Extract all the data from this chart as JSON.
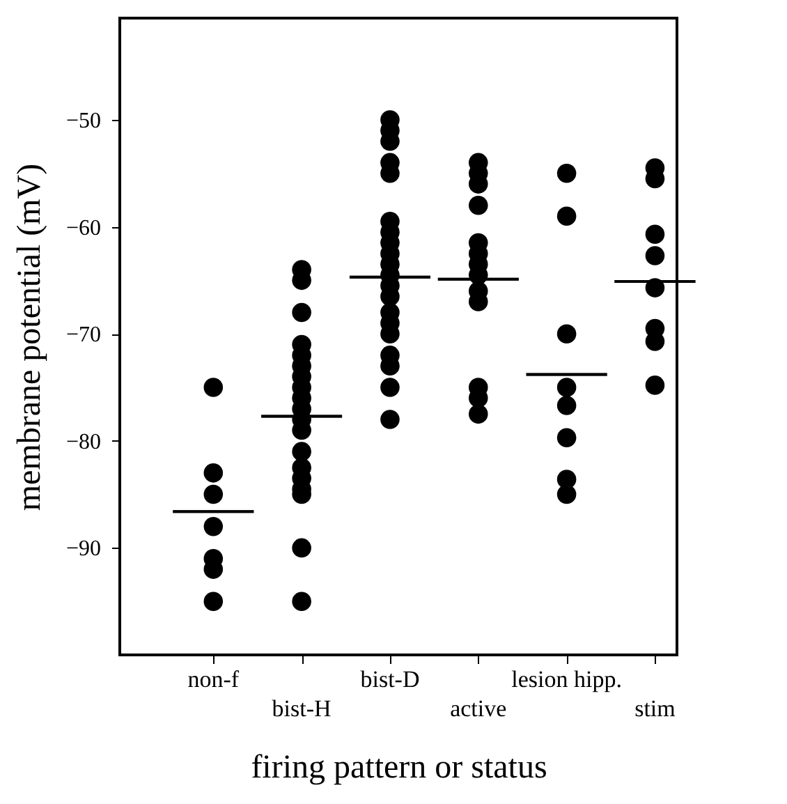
{
  "chart_data": {
    "type": "scatter",
    "xlabel": "firing pattern or status",
    "ylabel": "membrane potential (mV)",
    "categories": [
      "non-f",
      "bist-H",
      "bist-D",
      "active",
      "lesion hipp.",
      "stim"
    ],
    "ylim": [
      -100,
      -40.5
    ],
    "yticks": [
      -50,
      -60,
      -70,
      -80,
      -90
    ],
    "grid": false,
    "marker": "circle",
    "series": [
      {
        "color": "#000000",
        "x": [
          "non-f",
          "non-f",
          "non-f",
          "non-f",
          "non-f",
          "non-f",
          "non-f",
          "bist-H",
          "bist-H",
          "bist-H",
          "bist-H",
          "bist-H",
          "bist-H",
          "bist-H",
          "bist-H",
          "bist-H",
          "bist-H",
          "bist-H",
          "bist-H",
          "bist-H",
          "bist-H",
          "bist-H",
          "bist-H",
          "bist-H",
          "bist-H",
          "bist-H",
          "bist-D",
          "bist-D",
          "bist-D",
          "bist-D",
          "bist-D",
          "bist-D",
          "bist-D",
          "bist-D",
          "bist-D",
          "bist-D",
          "bist-D",
          "bist-D",
          "bist-D",
          "bist-D",
          "bist-D",
          "bist-D",
          "bist-D",
          "bist-D",
          "bist-D",
          "bist-D",
          "active",
          "active",
          "active",
          "active",
          "active",
          "active",
          "active",
          "active",
          "active",
          "active",
          "active",
          "active",
          "active",
          "lesion hipp.",
          "lesion hipp.",
          "lesion hipp.",
          "lesion hipp.",
          "lesion hipp.",
          "lesion hipp.",
          "lesion hipp.",
          "lesion hipp.",
          "stim",
          "stim",
          "stim",
          "stim",
          "stim",
          "stim",
          "stim",
          "stim"
        ],
        "values": [
          -75,
          -83,
          -85,
          -88,
          -91,
          -92,
          -95,
          -64,
          -65,
          -68,
          -71,
          -72,
          -73,
          -74,
          -75,
          -76,
          -77,
          -78,
          -79,
          -81,
          -82.5,
          -83.5,
          -84.5,
          -85,
          -90,
          -95,
          -50,
          -51,
          -52,
          -54,
          -55,
          -59.5,
          -60.5,
          -61.5,
          -62.5,
          -63.5,
          -64.5,
          -65.5,
          -66.5,
          -68,
          -69,
          -70,
          -72,
          -73,
          -75,
          -78,
          -54,
          -55,
          -56,
          -58,
          -61.5,
          -62.5,
          -63.5,
          -64.5,
          -66,
          -67,
          -75,
          -76,
          -77.5,
          -55,
          -59,
          -70,
          -75,
          -76.7,
          -79.7,
          -83.6,
          -85,
          -54.5,
          -55.5,
          -60.7,
          -62.7,
          -65.7,
          -69.5,
          -70.7,
          -74.8
        ]
      },
      {
        "type": "box",
        "color": "#000000",
        "boxes": [
          {
            "low": -86.6,
            "q1": -86.6,
            "median": -86.6,
            "q3": -86.6,
            "high": -86.6
          },
          {
            "low": -77.7,
            "q1": -77.7,
            "median": -77.7,
            "q3": -77.7,
            "high": -77.7
          },
          {
            "low": -64.7,
            "q1": -64.7,
            "median": -64.7,
            "q3": -64.7,
            "high": -64.7
          },
          {
            "low": -64.9,
            "q1": -64.9,
            "median": -64.9,
            "q3": -64.9,
            "high": -64.9
          },
          {
            "low": -73.8,
            "q1": -73.8,
            "median": -73.8,
            "q3": -73.8,
            "high": -73.8
          },
          {
            "low": -65.1,
            "q1": -65.1,
            "median": -65.1,
            "q3": -65.1,
            "high": -65.1
          }
        ]
      }
    ]
  }
}
